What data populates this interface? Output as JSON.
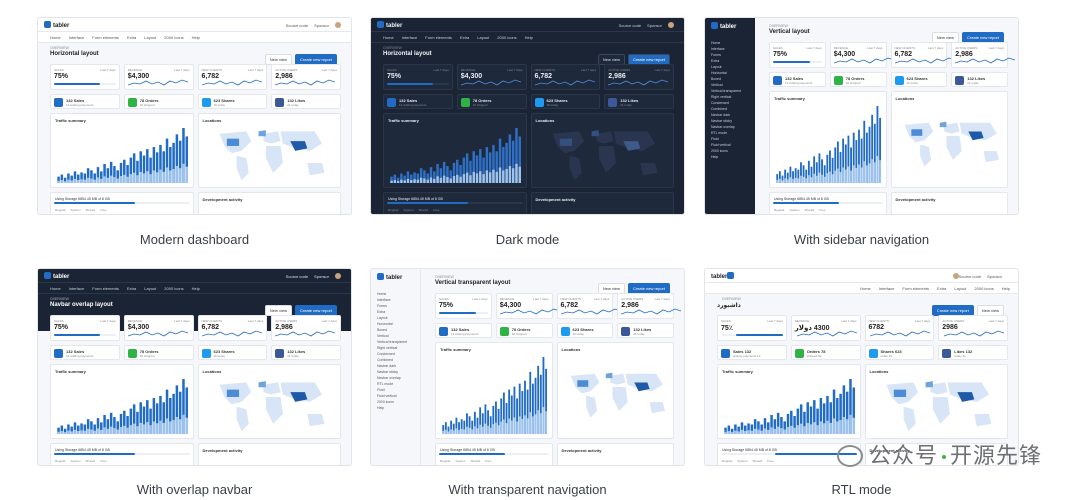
{
  "captions": [
    "Modern dashboard",
    "Dark mode",
    "With sidebar navigation",
    "With overlap navbar",
    "With transparent navigation",
    "RTL mode"
  ],
  "brand": "tabler",
  "header": {
    "source_code": "Source code",
    "sponsor": "Sponsor",
    "user": "Paweł Kuna"
  },
  "nav_items": [
    "Home",
    "Interface",
    "Form elements",
    "Extra",
    "Layout",
    "2000 icons",
    "Help"
  ],
  "page_titles": [
    "Horizontal layout",
    "Horizontal layout",
    "Vertical layout",
    "Navbar overlap layout",
    "Vertical transparent layout",
    "Horizontal layout"
  ],
  "overline": "Overview",
  "buttons": {
    "new_view": "New view",
    "create_report": "Create new report"
  },
  "stats": [
    {
      "label": "Sales",
      "value": "75%",
      "period": "Last 7 days"
    },
    {
      "label": "Revenue",
      "value": "$4,300",
      "period": "Last 7 days"
    },
    {
      "label": "New clients",
      "value": "6,782",
      "period": "Last 7 days"
    },
    {
      "label": "Active users",
      "value": "2,986",
      "period": "Last 7 days"
    }
  ],
  "mini_cards": [
    {
      "title": "132 Sales",
      "sub": "12 waiting payments",
      "color": "#206bc4"
    },
    {
      "title": "78 Orders",
      "sub": "32 shipped",
      "color": "#2fb344"
    },
    {
      "title": "623 Shares",
      "sub": "16 today",
      "color": "#1d9bf0"
    },
    {
      "title": "132 Likes",
      "sub": "21 today",
      "color": "#3b5998"
    }
  ],
  "conversion_rate": "Conversion rate",
  "traffic_summary": "Traffic summary",
  "locations": "Locations",
  "development_activity": "Development activity",
  "storage": "Using Storage 6854.45 MB of 8 GB",
  "legend": [
    "Regular",
    "System",
    "Shared",
    "Free"
  ],
  "sidebar_items": [
    "Home",
    "Interface",
    "Forms",
    "Extra",
    "Layout",
    "Horizontal",
    "Boxed",
    "Vertical",
    "Vertical transparent",
    "Right vertical",
    "Condensed",
    "Combined",
    "Navbar dark",
    "Navbar sticky",
    "Navbar overlap",
    "RTL mode",
    "Fluid",
    "Fluid vertical",
    "2000 icons",
    "Help"
  ],
  "rtl": {
    "title": "داشبورد",
    "value1": "75٪",
    "value2": "4300 دولار",
    "value3": "6782",
    "value4": "2986"
  },
  "watermark": {
    "left": "公众号",
    "right": "开源先锋"
  },
  "bar_heights": [
    6,
    8,
    5,
    9,
    7,
    11,
    8,
    10,
    9,
    14,
    12,
    9,
    15,
    11,
    18,
    14,
    20,
    16,
    12,
    19,
    22,
    17,
    24,
    28,
    21,
    30,
    26,
    32,
    24,
    34,
    29,
    36,
    30,
    42,
    34,
    38,
    46,
    40,
    52,
    44
  ],
  "progress": 0.75,
  "colors": {
    "primary": "#206bc4",
    "green": "#2fb344",
    "cyan": "#1d9bf0",
    "dark": "#1b2434"
  }
}
